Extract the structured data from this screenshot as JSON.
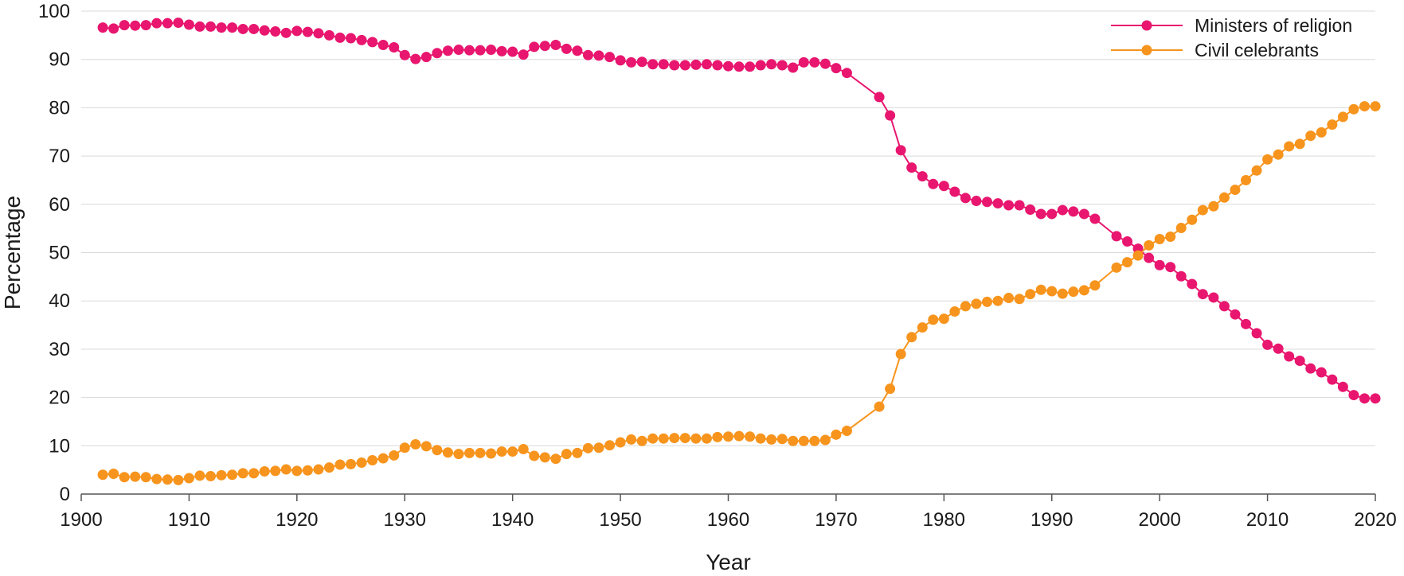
{
  "chart_data": {
    "type": "line",
    "xlabel": "Year",
    "ylabel": "Percentage",
    "xlim": [
      1900,
      2020
    ],
    "ylim": [
      0,
      100
    ],
    "x_ticks": [
      1900,
      1910,
      1920,
      1930,
      1940,
      1950,
      1960,
      1970,
      1980,
      1990,
      2000,
      2010,
      2020
    ],
    "y_ticks": [
      0,
      10,
      20,
      30,
      40,
      50,
      60,
      70,
      80,
      90,
      100
    ],
    "grid": "horizontal",
    "legend_position": "top-right",
    "x": [
      1902,
      1903,
      1904,
      1905,
      1906,
      1907,
      1908,
      1909,
      1910,
      1911,
      1912,
      1913,
      1914,
      1915,
      1916,
      1917,
      1918,
      1919,
      1920,
      1921,
      1922,
      1923,
      1924,
      1925,
      1926,
      1927,
      1928,
      1929,
      1930,
      1931,
      1932,
      1933,
      1934,
      1935,
      1936,
      1937,
      1938,
      1939,
      1940,
      1941,
      1942,
      1943,
      1944,
      1945,
      1946,
      1947,
      1948,
      1949,
      1950,
      1951,
      1952,
      1953,
      1954,
      1955,
      1956,
      1957,
      1958,
      1959,
      1960,
      1961,
      1962,
      1963,
      1964,
      1965,
      1966,
      1967,
      1968,
      1969,
      1970,
      1971,
      1974,
      1975,
      1976,
      1977,
      1978,
      1979,
      1980,
      1981,
      1982,
      1983,
      1984,
      1985,
      1986,
      1987,
      1988,
      1989,
      1990,
      1991,
      1992,
      1993,
      1994,
      1996,
      1997,
      1998,
      1999,
      2000,
      2001,
      2002,
      2003,
      2004,
      2005,
      2006,
      2007,
      2008,
      2009,
      2010,
      2011,
      2012,
      2013,
      2014,
      2015,
      2016,
      2017,
      2018,
      2019,
      2020
    ],
    "series": [
      {
        "name": "Ministers of religion",
        "color": "#e8166f",
        "values": [
          96.6,
          96.4,
          97.1,
          97.0,
          97.1,
          97.5,
          97.5,
          97.6,
          97.2,
          96.8,
          96.8,
          96.6,
          96.6,
          96.3,
          96.3,
          96.0,
          95.8,
          95.5,
          95.9,
          95.7,
          95.4,
          95.0,
          94.5,
          94.4,
          94.0,
          93.6,
          93.0,
          92.5,
          90.9,
          90.1,
          90.5,
          91.3,
          91.8,
          92.0,
          91.9,
          91.9,
          92.0,
          91.7,
          91.6,
          91.0,
          92.6,
          92.8,
          93.0,
          92.2,
          91.8,
          90.9,
          90.8,
          90.5,
          89.8,
          89.4,
          89.5,
          89.0,
          89.0,
          88.8,
          88.8,
          88.9,
          89.0,
          88.8,
          88.6,
          88.5,
          88.5,
          88.8,
          89.0,
          88.8,
          88.3,
          89.4,
          89.4,
          89.1,
          88.2,
          87.2,
          82.2,
          78.4,
          71.2,
          67.6,
          65.8,
          64.2,
          63.8,
          62.6,
          61.3,
          60.7,
          60.5,
          60.2,
          59.8,
          59.8,
          58.9,
          58.0,
          58.0,
          58.8,
          58.5,
          58.0,
          57.0,
          53.4,
          52.3,
          50.8,
          48.9,
          47.4,
          47.0,
          45.1,
          43.5,
          41.4,
          40.7,
          38.9,
          37.2,
          35.2,
          33.3,
          30.9,
          30.1,
          28.5,
          27.6,
          26.0,
          25.2,
          23.7,
          22.2,
          20.5,
          19.8,
          19.8
        ]
      },
      {
        "name": "Civil celebrants",
        "color": "#f7941d",
        "values": [
          4.0,
          4.2,
          3.5,
          3.6,
          3.5,
          3.1,
          3.0,
          2.9,
          3.3,
          3.8,
          3.7,
          3.9,
          4.0,
          4.3,
          4.3,
          4.7,
          4.8,
          5.1,
          4.8,
          4.9,
          5.1,
          5.5,
          6.1,
          6.2,
          6.5,
          7.0,
          7.4,
          8.0,
          9.6,
          10.3,
          9.9,
          9.1,
          8.6,
          8.3,
          8.5,
          8.5,
          8.4,
          8.8,
          8.8,
          9.3,
          7.9,
          7.6,
          7.3,
          8.3,
          8.5,
          9.5,
          9.6,
          10.1,
          10.7,
          11.3,
          11.0,
          11.5,
          11.5,
          11.6,
          11.6,
          11.5,
          11.5,
          11.8,
          11.9,
          12.0,
          11.9,
          11.5,
          11.3,
          11.4,
          11.0,
          11.0,
          11.0,
          11.2,
          12.3,
          13.1,
          18.1,
          21.8,
          29.0,
          32.5,
          34.5,
          36.1,
          36.3,
          37.8,
          38.9,
          39.4,
          39.8,
          40.0,
          40.6,
          40.4,
          41.4,
          42.3,
          42.0,
          41.5,
          41.9,
          42.2,
          43.2,
          46.9,
          48.0,
          49.4,
          51.5,
          52.8,
          53.3,
          55.1,
          56.8,
          58.8,
          59.6,
          61.4,
          63.0,
          65.0,
          67.0,
          69.3,
          70.3,
          72.0,
          72.5,
          74.2,
          74.9,
          76.5,
          78.1,
          79.7,
          80.3,
          80.3
        ]
      }
    ]
  }
}
